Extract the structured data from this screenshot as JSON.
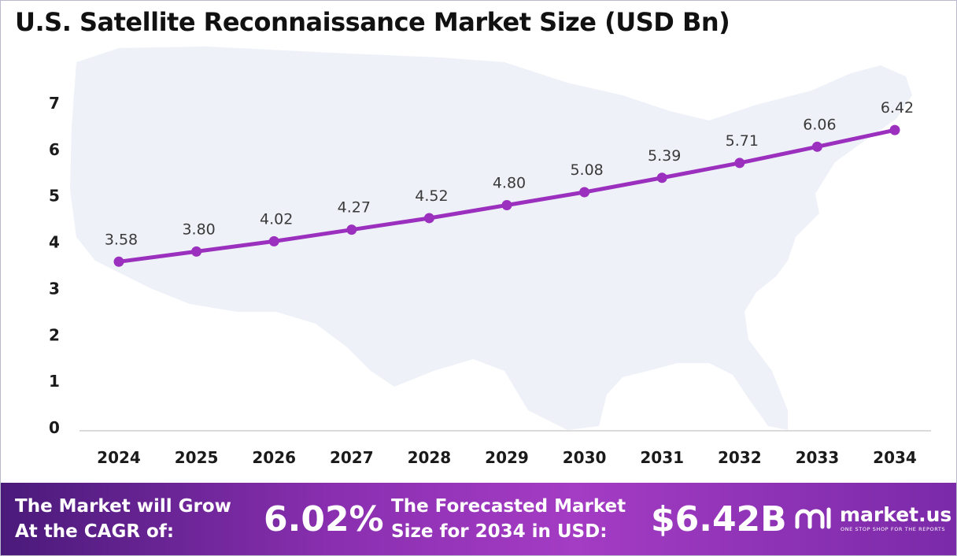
{
  "title": "U.S. Satellite Reconnaissance Market Size (USD Bn)",
  "colors": {
    "line": "#9b2fbe",
    "point": "#9b2fbe",
    "map": "#eef1f8",
    "footer_start": "#4a1a7a",
    "footer_end": "#a43cc4"
  },
  "chart_data": {
    "type": "line",
    "title": "U.S. Satellite Reconnaissance Market Size (USD Bn)",
    "x": [
      "2024",
      "2025",
      "2026",
      "2027",
      "2028",
      "2029",
      "2030",
      "2031",
      "2032",
      "2033",
      "2034"
    ],
    "series": [
      {
        "values": [
          3.58,
          3.8,
          4.02,
          4.27,
          4.52,
          4.8,
          5.08,
          5.39,
          5.71,
          6.06,
          6.42
        ]
      }
    ],
    "data_labels": [
      "3.58",
      "3.80",
      "4.02",
      "4.27",
      "4.52",
      "4.80",
      "5.08",
      "5.39",
      "5.71",
      "6.06",
      "6.42"
    ],
    "y_ticks": [
      "0",
      "1",
      "2",
      "3",
      "4",
      "5",
      "6",
      "7"
    ],
    "ylim": [
      0,
      7
    ],
    "xlabel": "",
    "ylabel": "",
    "grid": false,
    "legend": "none"
  },
  "footer": {
    "cagr_label_line1": "The Market will Grow",
    "cagr_label_line2": "At the CAGR of:",
    "cagr_value": "6.02%",
    "forecast_label_line1": "The Forecasted Market",
    "forecast_label_line2": "Size for 2034 in USD:",
    "forecast_value": "$6.42B",
    "logo_name": "market.us",
    "logo_tagline": "ONE STOP SHOP FOR THE REPORTS",
    "logo_icon": "market-us-logo-icon"
  }
}
